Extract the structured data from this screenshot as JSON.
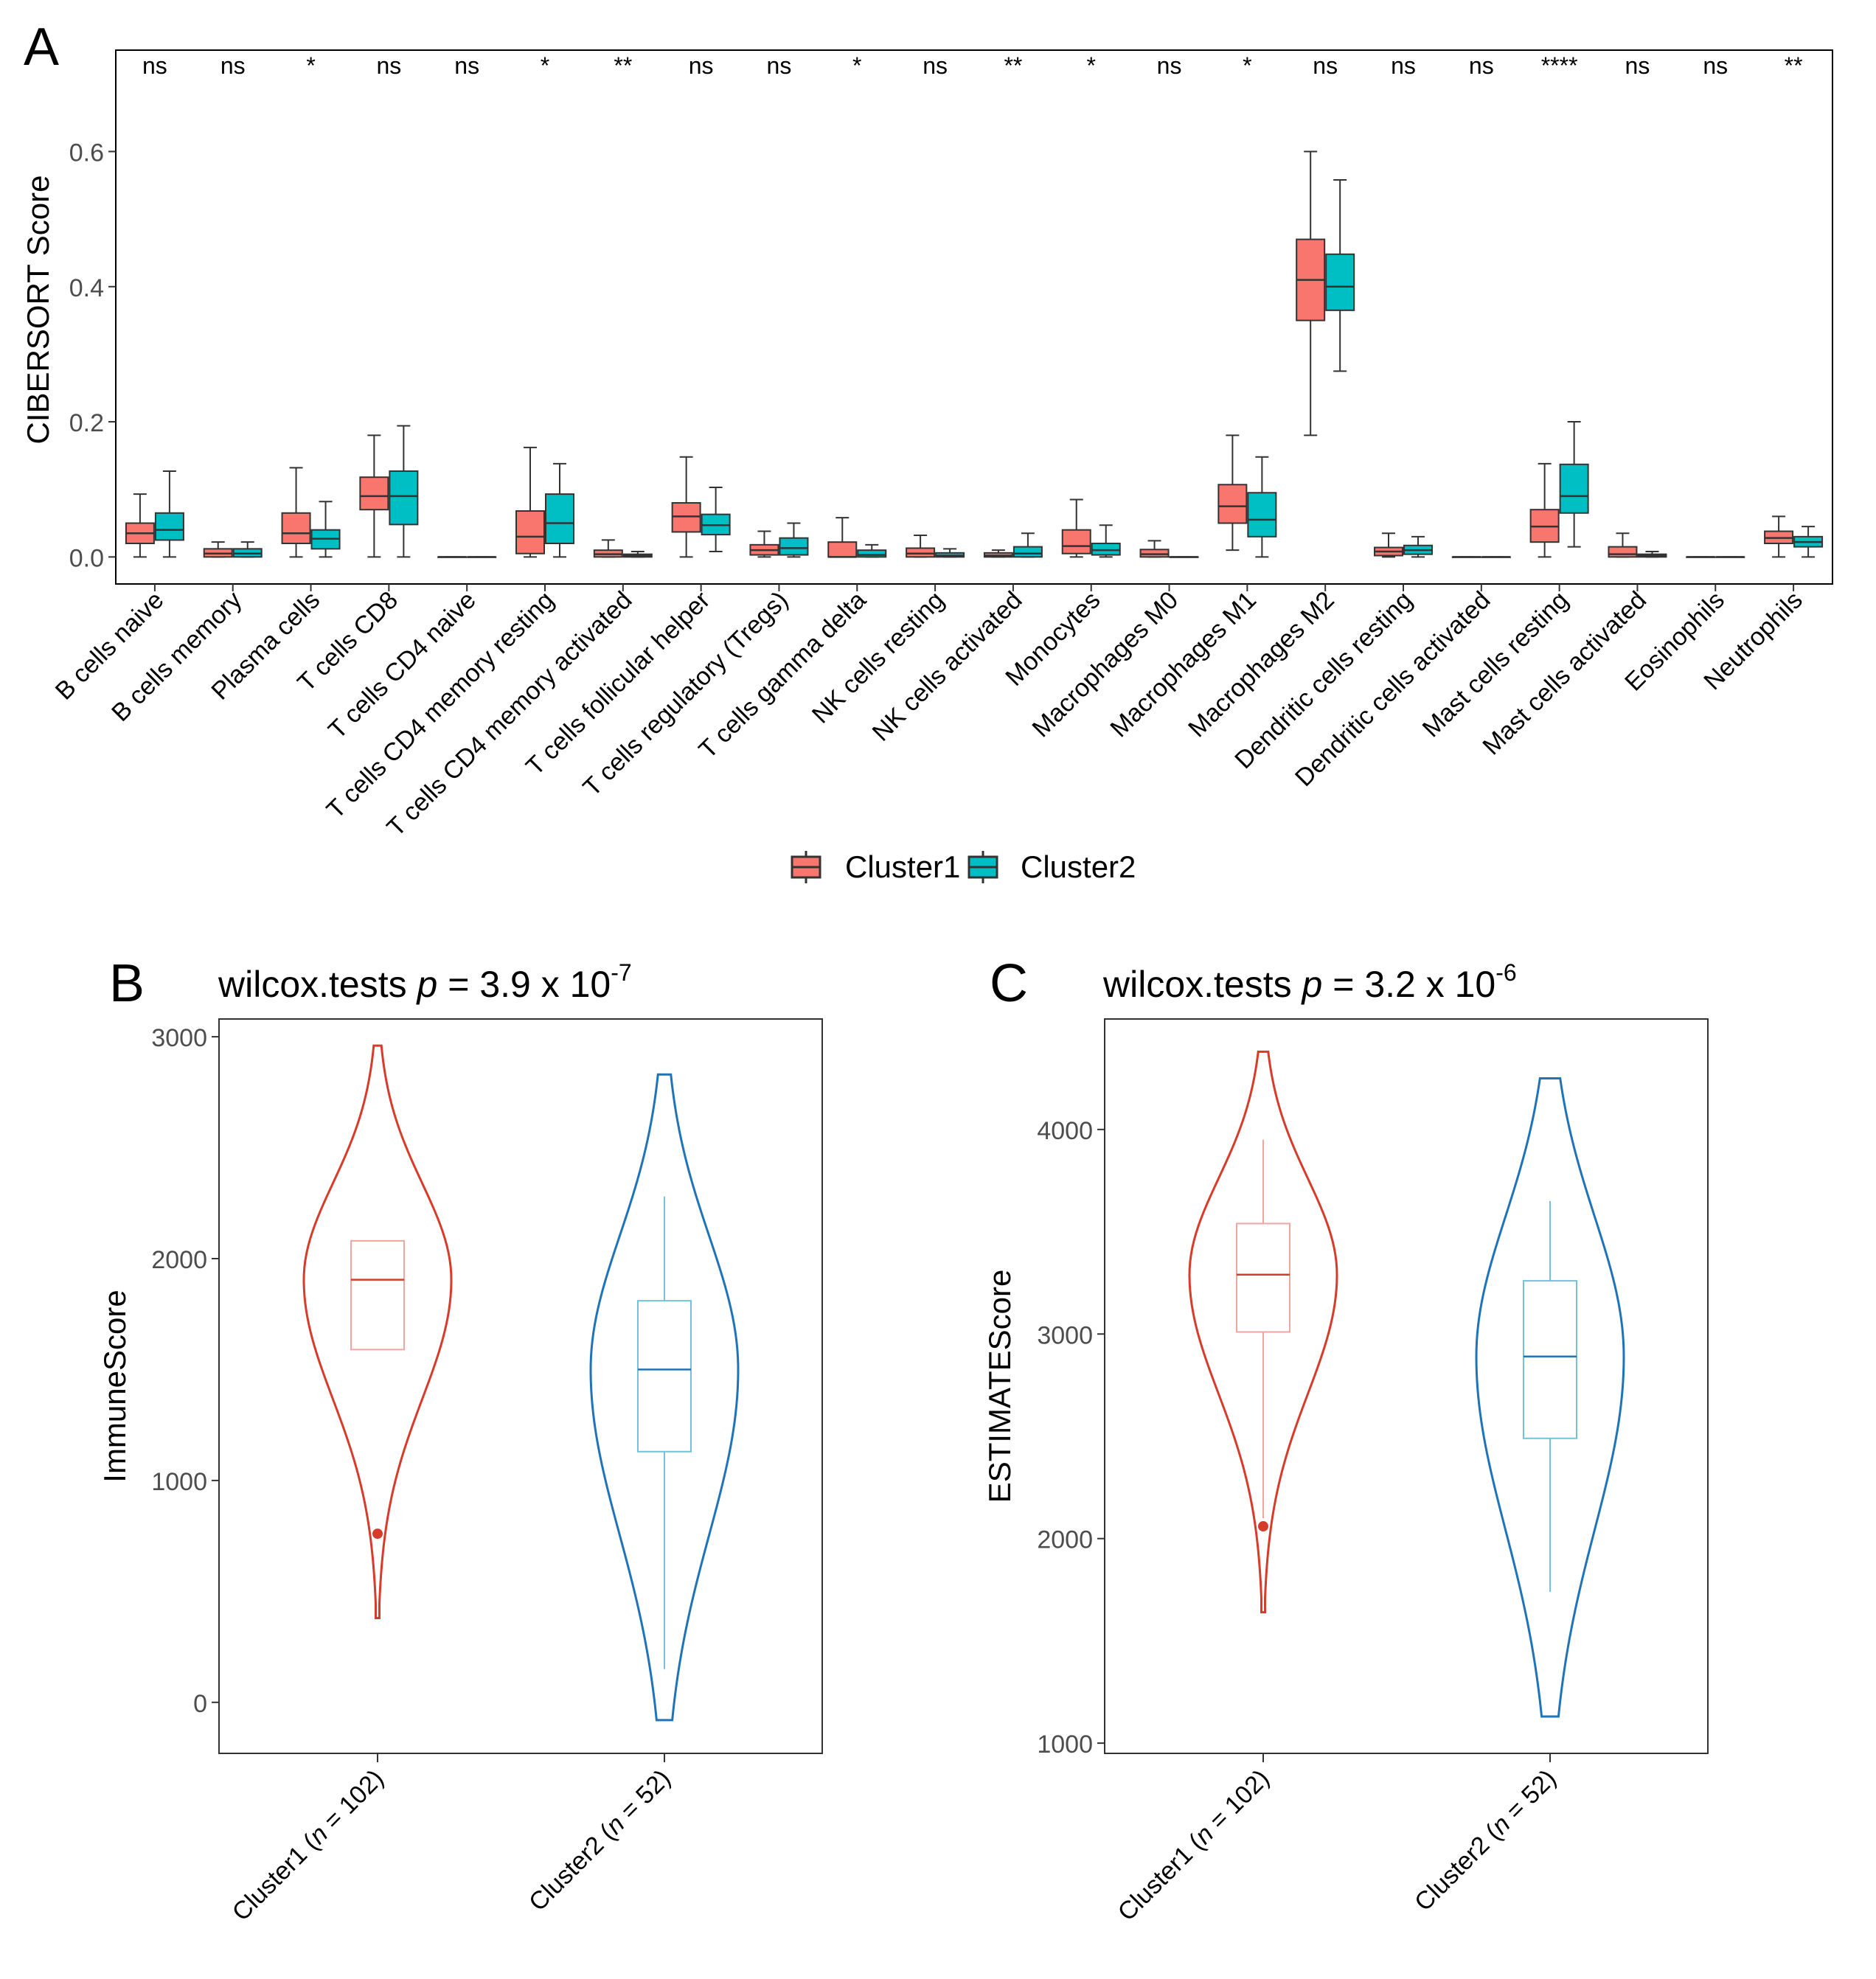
{
  "colors": {
    "cluster1_fill": "#F8766D",
    "cluster2_fill": "#00BFC4",
    "violin1": "#D73B2A",
    "violin2": "#1F73B8",
    "violin1_box": "#F0A6A0",
    "violin2_box": "#72C2DC"
  },
  "chart_data": [
    {
      "panel": "A",
      "type": "box",
      "ylabel": "CIBERSORT Score",
      "ylim": [
        -0.04,
        0.75
      ],
      "yticks": [
        "0.0",
        "0.2",
        "0.4",
        "0.6"
      ],
      "categories": [
        "B cells naive",
        "B cells memory",
        "Plasma cells",
        "T cells CD8",
        "T cells CD4 naive",
        "T cells CD4 memory resting",
        "T cells CD4 memory activated",
        "T cells follicular helper",
        "T cells regulatory (Tregs)",
        "T cells gamma delta",
        "NK cells resting",
        "NK cells activated",
        "Monocytes",
        "Macrophages M0",
        "Macrophages M1",
        "Macrophages M2",
        "Dendritic cells resting",
        "Dendritic cells activated",
        "Mast cells resting",
        "Mast cells activated",
        "Eosinophils",
        "Neutrophils"
      ],
      "significance": [
        "ns",
        "ns",
        "*",
        "ns",
        "ns",
        "*",
        "**",
        "ns",
        "ns",
        "*",
        "ns",
        "**",
        "*",
        "ns",
        "*",
        "ns",
        "ns",
        "ns",
        "****",
        "ns",
        "ns",
        "**"
      ],
      "legend": [
        "Cluster1",
        "Cluster2"
      ],
      "series": [
        {
          "name": "Cluster1",
          "stats": [
            [
              0.0,
              0.02,
              0.035,
              0.05,
              0.093
            ],
            [
              0.0,
              0.0,
              0.005,
              0.012,
              0.022
            ],
            [
              0.0,
              0.02,
              0.035,
              0.065,
              0.132
            ],
            [
              0.0,
              0.07,
              0.09,
              0.118,
              0.18
            ],
            [
              0.0,
              0.0,
              0.0,
              0.0,
              0.0
            ],
            [
              0.0,
              0.005,
              0.03,
              0.068,
              0.162
            ],
            [
              0.0,
              0.0,
              0.004,
              0.01,
              0.025
            ],
            [
              0.0,
              0.037,
              0.06,
              0.08,
              0.148
            ],
            [
              0.0,
              0.003,
              0.01,
              0.018,
              0.038
            ],
            [
              0.0,
              0.0,
              0.0,
              0.022,
              0.058
            ],
            [
              0.0,
              0.0,
              0.005,
              0.013,
              0.032
            ],
            [
              0.0,
              0.0,
              0.002,
              0.006,
              0.01
            ],
            [
              0.0,
              0.005,
              0.016,
              0.04,
              0.085
            ],
            [
              0.0,
              0.0,
              0.004,
              0.011,
              0.024
            ],
            [
              0.01,
              0.05,
              0.075,
              0.107,
              0.18
            ],
            [
              0.18,
              0.35,
              0.41,
              0.47,
              0.6
            ],
            [
              0.0,
              0.002,
              0.008,
              0.014,
              0.035
            ],
            [
              0.0,
              0.0,
              0.0,
              0.0,
              0.0
            ],
            [
              0.0,
              0.022,
              0.045,
              0.07,
              0.138
            ],
            [
              0.0,
              0.0,
              0.004,
              0.015,
              0.035
            ],
            [
              0.0,
              0.0,
              0.0,
              0.0,
              0.0
            ],
            [
              0.0,
              0.02,
              0.028,
              0.038,
              0.06
            ]
          ]
        },
        {
          "name": "Cluster2",
          "stats": [
            [
              0.0,
              0.025,
              0.04,
              0.065,
              0.127
            ],
            [
              0.0,
              0.0,
              0.005,
              0.012,
              0.022
            ],
            [
              0.0,
              0.012,
              0.027,
              0.04,
              0.082
            ],
            [
              0.0,
              0.048,
              0.09,
              0.127,
              0.194
            ],
            [
              0.0,
              0.0,
              0.0,
              0.0,
              0.0
            ],
            [
              0.0,
              0.02,
              0.05,
              0.093,
              0.138
            ],
            [
              0.0,
              0.0,
              0.002,
              0.004,
              0.008
            ],
            [
              0.008,
              0.033,
              0.047,
              0.063,
              0.103
            ],
            [
              0.0,
              0.003,
              0.013,
              0.028,
              0.05
            ],
            [
              0.0,
              0.0,
              0.003,
              0.01,
              0.018
            ],
            [
              0.0,
              0.0,
              0.002,
              0.006,
              0.012
            ],
            [
              0.0,
              0.0,
              0.005,
              0.015,
              0.035
            ],
            [
              0.0,
              0.003,
              0.01,
              0.02,
              0.047
            ],
            [
              0.0,
              0.0,
              0.0,
              0.0,
              0.0
            ],
            [
              0.0,
              0.03,
              0.055,
              0.095,
              0.148
            ],
            [
              0.275,
              0.365,
              0.4,
              0.448,
              0.558
            ],
            [
              0.0,
              0.004,
              0.01,
              0.017,
              0.03
            ],
            [
              0.0,
              0.0,
              0.0,
              0.0,
              0.0
            ],
            [
              0.015,
              0.065,
              0.09,
              0.137,
              0.2
            ],
            [
              0.0,
              0.0,
              0.002,
              0.004,
              0.008
            ],
            [
              0.0,
              0.0,
              0.0,
              0.0,
              0.0
            ],
            [
              0.0,
              0.015,
              0.022,
              0.03,
              0.045
            ]
          ]
        }
      ]
    },
    {
      "panel": "B",
      "type": "violin",
      "title_prefix": "wilcox.tests",
      "p_symbol": "p",
      "p_equals": " = 3.9 x 10",
      "p_exponent": "-7",
      "ylabel": "ImmuneScore",
      "ylim": [
        -230,
        3080
      ],
      "yticks": [
        "0",
        "1000",
        "2000",
        "3000"
      ],
      "groups": [
        {
          "label_prefix": "Cluster1 (",
          "n_symbol": "n",
          "label_suffix": " = 102)",
          "min": 380,
          "q1": 1590,
          "median": 1905,
          "q3": 2080,
          "max": 2960,
          "whisker_low": 1590,
          "whisker_high": 2080,
          "outlier": 760
        },
        {
          "label_prefix": "Cluster2 (",
          "n_symbol": "n",
          "label_suffix": " = 52)",
          "min": -80,
          "q1": 1130,
          "median": 1500,
          "q3": 1810,
          "max": 2830,
          "whisker_low": 150,
          "whisker_high": 2280
        }
      ]
    },
    {
      "panel": "C",
      "type": "violin",
      "title_prefix": "wilcox.tests",
      "p_symbol": "p",
      "p_equals": " = 3.2 x 10",
      "p_exponent": "-6",
      "ylabel": "ESTIMATEScore",
      "ylim": [
        950,
        4540
      ],
      "yticks": [
        "1000",
        "2000",
        "3000",
        "4000"
      ],
      "groups": [
        {
          "label_prefix": "Cluster1 (",
          "n_symbol": "n",
          "label_suffix": " = 102)",
          "min": 1640,
          "q1": 3010,
          "median": 3290,
          "q3": 3540,
          "max": 4380,
          "whisker_low": 2100,
          "whisker_high": 3950,
          "outlier": 2060
        },
        {
          "label_prefix": "Cluster2 (",
          "n_symbol": "n",
          "label_suffix": " = 52)",
          "min": 1130,
          "q1": 2490,
          "median": 2890,
          "q3": 3260,
          "max": 4250,
          "whisker_low": 1740,
          "whisker_high": 3650
        }
      ]
    }
  ],
  "panel_labels": {
    "a": "A",
    "b": "B",
    "c": "C"
  }
}
